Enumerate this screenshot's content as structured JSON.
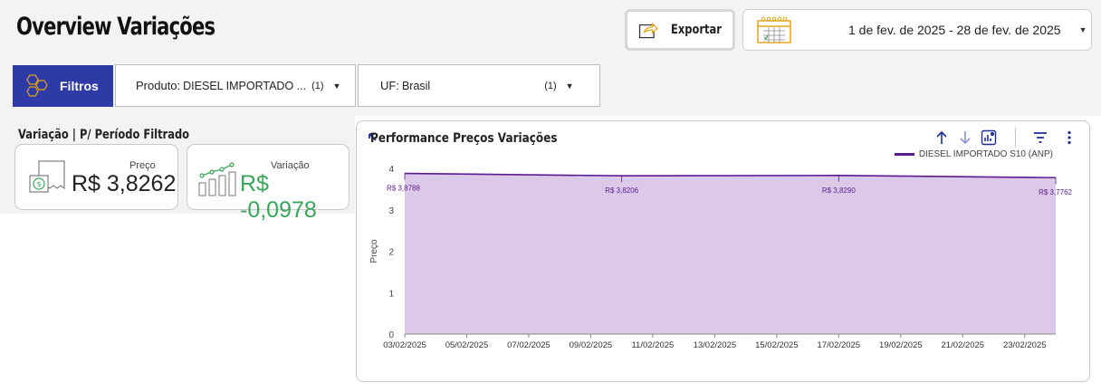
{
  "header": {
    "title": "Overview Variações",
    "export_label": "Exportar",
    "date_range": "1 de fev. de 2025 - 28 de fev. de 2025"
  },
  "filters": {
    "button_label": "Filtros",
    "produto": {
      "key": "Produto:",
      "value": "DIESEL IMPORTADO ...",
      "count": "(1)"
    },
    "uf": {
      "key": "UF:",
      "value": "Brasil",
      "count": "(1)"
    }
  },
  "kpi": {
    "section_title": "Variação | P/ Período Filtrado",
    "preco": {
      "caption": "Preço",
      "value": "R$ 3,8262"
    },
    "variacao": {
      "caption": "Variação",
      "value": "R$ -0,0978"
    }
  },
  "chart_panel": {
    "title": "Performance Preços Variações",
    "icons": [
      "expand-icon",
      "sort-up-icon",
      "sort-down-icon",
      "chart-type-icon",
      "filter-icon",
      "more-icon"
    ]
  },
  "colors": {
    "brand_blue": "#2e3aa6",
    "series": "#5b1a8e",
    "area": "#dcc9e9",
    "positive_green": "#3aa55a"
  },
  "chart_data": {
    "type": "area",
    "ylabel": "Preço",
    "ylim": [
      0,
      4
    ],
    "y_ticks": [
      "0",
      "1",
      "2",
      "3",
      "4"
    ],
    "x_tick_labels": [
      "03/02/2025",
      "05/02/2025",
      "07/02/2025",
      "09/02/2025",
      "11/02/2025",
      "13/02/2025",
      "15/02/2025",
      "17/02/2025",
      "19/02/2025",
      "21/02/2025",
      "23/02/2025"
    ],
    "legend_position": "top-right",
    "series": [
      {
        "name": "DIESEL IMPORTADO S10 (ANP)",
        "x": [
          "03/02/2025",
          "10/02/2025",
          "17/02/2025",
          "24/02/2025"
        ],
        "values": [
          3.8788,
          3.8206,
          3.829,
          3.7762
        ],
        "labels": [
          "R$ 3,8788",
          "R$ 3,8206",
          "R$ 3,8290",
          "R$ 3,7762"
        ]
      }
    ]
  }
}
